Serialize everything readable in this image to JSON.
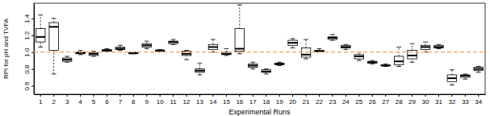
{
  "chart_data": {
    "type": "box",
    "x_label": "Experimental Runs",
    "y_label": "RPI for pH and TVFA",
    "categories": [
      "1",
      "2",
      "3",
      "4",
      "5",
      "6",
      "7",
      "8",
      "9",
      "10",
      "11",
      "12",
      "13",
      "14",
      "15",
      "16",
      "17",
      "18",
      "19",
      "20",
      "21",
      "22",
      "23",
      "24",
      "25",
      "26",
      "27",
      "28",
      "29",
      "30",
      "31",
      "32",
      "33",
      "34"
    ],
    "boxes": [
      {
        "min": 1.06,
        "q1": 1.12,
        "median": 1.18,
        "q3": 1.28,
        "max": 1.44
      },
      {
        "min": 0.74,
        "q1": 1.02,
        "median": 1.3,
        "q3": 1.35,
        "max": 1.4
      },
      {
        "min": 0.88,
        "q1": 0.89,
        "median": 0.91,
        "q3": 0.93,
        "max": 0.95
      },
      {
        "min": 0.97,
        "q1": 0.98,
        "median": 0.99,
        "q3": 1.0,
        "max": 1.02
      },
      {
        "min": 0.95,
        "q1": 0.96,
        "median": 0.98,
        "q3": 0.99,
        "max": 1.01
      },
      {
        "min": 1.01,
        "q1": 1.01,
        "median": 1.02,
        "q3": 1.03,
        "max": 1.04
      },
      {
        "min": 1.02,
        "q1": 1.03,
        "median": 1.04,
        "q3": 1.06,
        "max": 1.08
      },
      {
        "min": 0.98,
        "q1": 0.98,
        "median": 0.99,
        "q3": 0.99,
        "max": 1.0
      },
      {
        "min": 1.04,
        "q1": 1.06,
        "median": 1.08,
        "q3": 1.1,
        "max": 1.13
      },
      {
        "min": 1.01,
        "q1": 1.01,
        "median": 1.02,
        "q3": 1.02,
        "max": 1.03
      },
      {
        "min": 1.09,
        "q1": 1.1,
        "median": 1.12,
        "q3": 1.13,
        "max": 1.15
      },
      {
        "min": 0.91,
        "q1": 0.96,
        "median": 0.98,
        "q3": 1.01,
        "max": 1.02
      },
      {
        "min": 0.73,
        "q1": 0.76,
        "median": 0.78,
        "q3": 0.8,
        "max": 0.87
      },
      {
        "min": 1.0,
        "q1": 1.03,
        "median": 1.06,
        "q3": 1.09,
        "max": 1.15
      },
      {
        "min": 0.96,
        "q1": 0.97,
        "median": 0.98,
        "q3": 1.0,
        "max": 1.04
      },
      {
        "min": 0.98,
        "q1": 1.01,
        "median": 1.04,
        "q3": 1.28,
        "max": 1.56
      },
      {
        "min": 0.8,
        "q1": 0.82,
        "median": 0.84,
        "q3": 0.86,
        "max": 0.88
      },
      {
        "min": 0.74,
        "q1": 0.76,
        "median": 0.77,
        "q3": 0.79,
        "max": 0.8
      },
      {
        "min": 0.84,
        "q1": 0.85,
        "median": 0.86,
        "q3": 0.87,
        "max": 0.88
      },
      {
        "min": 1.05,
        "q1": 1.08,
        "median": 1.11,
        "q3": 1.14,
        "max": 1.16
      },
      {
        "min": 0.92,
        "q1": 0.94,
        "median": 0.97,
        "q3": 1.05,
        "max": 1.15
      },
      {
        "min": 1.0,
        "q1": 1.01,
        "median": 1.01,
        "q3": 1.02,
        "max": 1.04
      },
      {
        "min": 1.14,
        "q1": 1.15,
        "median": 1.17,
        "q3": 1.18,
        "max": 1.21
      },
      {
        "min": 1.03,
        "q1": 1.05,
        "median": 1.06,
        "q3": 1.08,
        "max": 1.09
      },
      {
        "min": 0.9,
        "q1": 0.92,
        "median": 0.95,
        "q3": 0.97,
        "max": 1.0
      },
      {
        "min": 0.86,
        "q1": 0.87,
        "median": 0.88,
        "q3": 0.89,
        "max": 0.9
      },
      {
        "min": 0.83,
        "q1": 0.84,
        "median": 0.84,
        "q3": 0.85,
        "max": 0.86
      },
      {
        "min": 0.83,
        "q1": 0.85,
        "median": 0.89,
        "q3": 0.95,
        "max": 1.06
      },
      {
        "min": 0.88,
        "q1": 0.92,
        "median": 0.96,
        "q3": 1.02,
        "max": 1.1
      },
      {
        "min": 1.0,
        "q1": 1.03,
        "median": 1.06,
        "q3": 1.08,
        "max": 1.12
      },
      {
        "min": 1.04,
        "q1": 1.05,
        "median": 1.06,
        "q3": 1.08,
        "max": 1.09
      },
      {
        "min": 0.61,
        "q1": 0.65,
        "median": 0.69,
        "q3": 0.73,
        "max": 0.79
      },
      {
        "min": 0.68,
        "q1": 0.7,
        "median": 0.72,
        "q3": 0.73,
        "max": 0.74
      },
      {
        "min": 0.76,
        "q1": 0.78,
        "median": 0.8,
        "q3": 0.82,
        "max": 0.83
      }
    ],
    "color": "#ffffff",
    "reference": {
      "value": 1,
      "color": "#f4a460",
      "line_style": "dashed"
    },
    "ylim": [
      0.5,
      1.58
    ],
    "yticks": [
      0.6,
      0.8,
      {
        "value": 1,
        "label": "1.0"
      },
      1.2,
      1.4
    ],
    "grid": false
  }
}
